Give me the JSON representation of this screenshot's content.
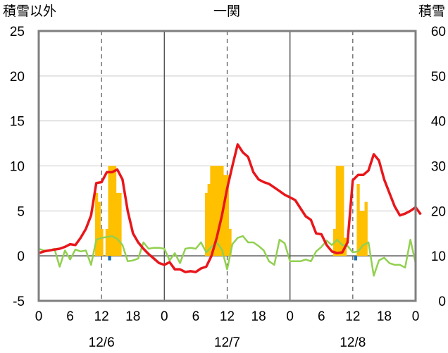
{
  "header": {
    "left_label": "積雪以外",
    "title": "一関",
    "right_label": "積雪"
  },
  "chart_data": {
    "type": "bar",
    "title": "一関",
    "left_axis": {
      "label": "積雪以外",
      "ylim": [
        -5,
        25
      ],
      "ticks": [
        25,
        20,
        15,
        10,
        5,
        0,
        -5
      ]
    },
    "right_axis": {
      "label": "積雪",
      "ylim": [
        0,
        60
      ],
      "ticks": [
        60,
        50,
        40,
        30,
        20,
        10,
        0
      ]
    },
    "x_axis": {
      "hours_total": 72,
      "tick_labels": [
        "0",
        "6",
        "12",
        "18",
        "0",
        "6",
        "12",
        "18",
        "0",
        "6",
        "12",
        "18",
        "0"
      ],
      "day_labels": [
        "12/6",
        "12/7",
        "12/8"
      ]
    },
    "grid": {
      "horizontal_every": 5,
      "dashed_at_hours": [
        12,
        36,
        60
      ],
      "solid_at_hours": [
        24,
        48
      ]
    },
    "colors": {
      "bars_orange": "#FFC000",
      "bars_blue": "#1F6FB4",
      "red_line": "#E8161B",
      "green_line": "#92D050",
      "purple_line": "#7030A0",
      "axis": "#7f7f7f"
    },
    "series": [
      {
        "kind": "bar",
        "color": "orange",
        "axis": "left",
        "values": [
          [
            11,
            7
          ],
          [
            11.5,
            6
          ],
          [
            12,
            3
          ],
          [
            13,
            3
          ],
          [
            13.5,
            10
          ],
          [
            14,
            10
          ],
          [
            14.5,
            10
          ],
          [
            15,
            7
          ],
          [
            15.5,
            7
          ],
          [
            32,
            7
          ],
          [
            32.5,
            8
          ],
          [
            33,
            10
          ],
          [
            33.5,
            10
          ],
          [
            34,
            10
          ],
          [
            34.5,
            10
          ],
          [
            35,
            10
          ],
          [
            35.5,
            9
          ],
          [
            36,
            9
          ],
          [
            36.5,
            3
          ],
          [
            56.5,
            3
          ],
          [
            57,
            10
          ],
          [
            57.5,
            10
          ],
          [
            58,
            10
          ],
          [
            58.5,
            2
          ],
          [
            61,
            8
          ],
          [
            61.5,
            5
          ],
          [
            62,
            5
          ],
          [
            62.5,
            6
          ]
        ]
      },
      {
        "kind": "bar",
        "color": "blue",
        "axis": "left",
        "values": [
          [
            13.5,
            -0.5
          ],
          [
            60.5,
            -0.5
          ]
        ]
      },
      {
        "kind": "line",
        "color": "red",
        "axis": "left",
        "values": [
          [
            0,
            0.3
          ],
          [
            1,
            0.5
          ],
          [
            2,
            0.6
          ],
          [
            3,
            0.7
          ],
          [
            4,
            0.8
          ],
          [
            5,
            1.0
          ],
          [
            6,
            1.3
          ],
          [
            7,
            1.2
          ],
          [
            8,
            2.0
          ],
          [
            9,
            3.0
          ],
          [
            10,
            4.5
          ],
          [
            11,
            8.1
          ],
          [
            12,
            8.2
          ],
          [
            13,
            9.3
          ],
          [
            14,
            9.3
          ],
          [
            15,
            9.6
          ],
          [
            16,
            8.5
          ],
          [
            17,
            5.0
          ],
          [
            18,
            2.5
          ],
          [
            19,
            1.5
          ],
          [
            20,
            0.8
          ],
          [
            21,
            0.2
          ],
          [
            22,
            -0.3
          ],
          [
            23,
            -0.8
          ],
          [
            24,
            -1.0
          ],
          [
            25,
            -0.7
          ],
          [
            26,
            -1.5
          ],
          [
            27,
            -1.5
          ],
          [
            28,
            -1.8
          ],
          [
            29,
            -1.7
          ],
          [
            30,
            -1.8
          ],
          [
            31,
            -1.4
          ],
          [
            32,
            -1.2
          ],
          [
            33,
            0.0
          ],
          [
            34,
            2.0
          ],
          [
            35,
            4.5
          ],
          [
            36,
            7.5
          ],
          [
            37,
            10.0
          ],
          [
            38,
            12.4
          ],
          [
            39,
            11.5
          ],
          [
            40,
            11.0
          ],
          [
            41,
            9.3
          ],
          [
            42,
            8.5
          ],
          [
            43,
            8.2
          ],
          [
            44,
            8.0
          ],
          [
            45,
            7.6
          ],
          [
            46,
            7.2
          ],
          [
            47,
            6.8
          ],
          [
            48,
            6.5
          ],
          [
            49,
            6.2
          ],
          [
            50,
            5.3
          ],
          [
            51,
            4.4
          ],
          [
            52,
            4.0
          ],
          [
            53,
            2.5
          ],
          [
            54,
            2.4
          ],
          [
            55,
            1.2
          ],
          [
            56,
            0.5
          ],
          [
            57,
            0.3
          ],
          [
            58,
            0.4
          ],
          [
            59,
            1.5
          ],
          [
            60,
            8.4
          ],
          [
            61,
            9.0
          ],
          [
            62,
            9.0
          ],
          [
            63,
            9.5
          ],
          [
            64,
            11.3
          ],
          [
            65,
            10.6
          ],
          [
            66,
            8.5
          ],
          [
            67,
            7.0
          ],
          [
            68,
            5.5
          ],
          [
            69,
            4.5
          ],
          [
            70,
            4.7
          ],
          [
            71,
            5.0
          ],
          [
            72,
            5.4
          ],
          [
            73,
            4.6
          ]
        ]
      },
      {
        "kind": "line",
        "color": "green",
        "axis": "left",
        "values": [
          [
            0,
            0.8
          ],
          [
            1,
            0.6
          ],
          [
            2,
            0.6
          ],
          [
            3,
            0.8
          ],
          [
            4,
            -1.2
          ],
          [
            5,
            0.6
          ],
          [
            6,
            -0.4
          ],
          [
            7,
            0.7
          ],
          [
            8,
            0.5
          ],
          [
            9,
            0.6
          ],
          [
            10,
            -1.0
          ],
          [
            11,
            1.8
          ],
          [
            12,
            2.0
          ],
          [
            13,
            2.1
          ],
          [
            14,
            2.2
          ],
          [
            15,
            1.9
          ],
          [
            16,
            1.2
          ],
          [
            17,
            -0.6
          ],
          [
            18,
            -0.5
          ],
          [
            19,
            -0.3
          ],
          [
            20,
            1.5
          ],
          [
            21,
            0.8
          ],
          [
            22,
            0.9
          ],
          [
            23,
            0.9
          ],
          [
            24,
            0.8
          ],
          [
            25,
            -0.5
          ],
          [
            26,
            0.3
          ],
          [
            27,
            -0.8
          ],
          [
            28,
            0.8
          ],
          [
            29,
            0.9
          ],
          [
            30,
            0.8
          ],
          [
            31,
            1.5
          ],
          [
            32,
            0.4
          ],
          [
            33,
            1.0
          ],
          [
            34,
            1.5
          ],
          [
            35,
            0.7
          ],
          [
            36,
            -1.5
          ],
          [
            37,
            1.3
          ],
          [
            38,
            2.0
          ],
          [
            39,
            2.2
          ],
          [
            40,
            1.5
          ],
          [
            41,
            1.5
          ],
          [
            42,
            1.1
          ],
          [
            43,
            0.6
          ],
          [
            44,
            -0.6
          ],
          [
            45,
            -1.0
          ],
          [
            46,
            1.8
          ],
          [
            47,
            1.4
          ],
          [
            48,
            -0.6
          ],
          [
            49,
            -0.6
          ],
          [
            50,
            -0.6
          ],
          [
            51,
            -0.4
          ],
          [
            52,
            -0.6
          ],
          [
            53,
            0.5
          ],
          [
            54,
            1.0
          ],
          [
            55,
            1.7
          ],
          [
            56,
            1.2
          ],
          [
            57,
            1.8
          ],
          [
            58,
            1.2
          ],
          [
            59,
            1.1
          ],
          [
            60,
            0.4
          ],
          [
            61,
            0.5
          ],
          [
            62,
            1.2
          ],
          [
            63,
            1.5
          ],
          [
            64,
            -2.2
          ],
          [
            65,
            -0.5
          ],
          [
            66,
            -0.2
          ],
          [
            67,
            -0.8
          ],
          [
            68,
            -1.0
          ],
          [
            69,
            -1.0
          ],
          [
            70,
            -1.3
          ],
          [
            71,
            1.8
          ],
          [
            72,
            -0.8
          ]
        ]
      },
      {
        "kind": "line",
        "color": "purple",
        "axis": "left",
        "values": [
          [
            0,
            -5
          ],
          [
            72,
            -5
          ]
        ]
      }
    ]
  }
}
